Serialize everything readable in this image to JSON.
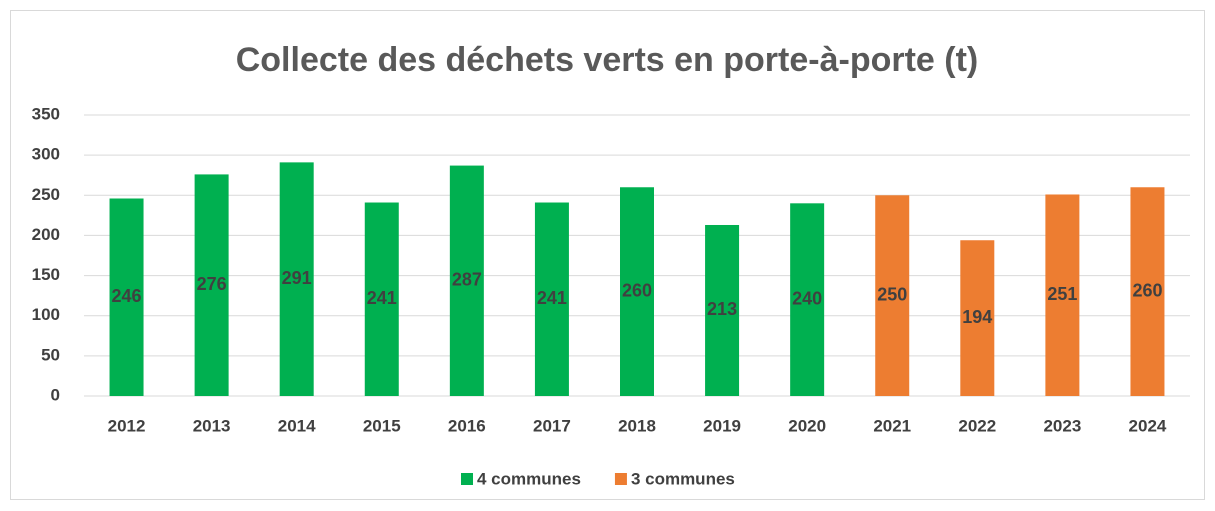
{
  "chart_data": {
    "type": "bar",
    "title": "Collecte des déchets verts en porte-à-porte (t)",
    "categories": [
      "2012",
      "2013",
      "2014",
      "2015",
      "2016",
      "2017",
      "2018",
      "2019",
      "2020",
      "2021",
      "2022",
      "2023",
      "2024"
    ],
    "series": [
      {
        "name": "4 communes",
        "color": "#00b050",
        "values": [
          246,
          276,
          291,
          241,
          287,
          241,
          260,
          213,
          240,
          null,
          null,
          null,
          null
        ]
      },
      {
        "name": "3 communes",
        "color": "#ed7d31",
        "values": [
          null,
          null,
          null,
          null,
          null,
          null,
          null,
          null,
          null,
          250,
          194,
          251,
          260
        ]
      }
    ],
    "ylim": [
      0,
      350
    ],
    "yticks": [
      0,
      50,
      100,
      150,
      200,
      250,
      300,
      350
    ],
    "grid": true,
    "legend": "bottom"
  }
}
